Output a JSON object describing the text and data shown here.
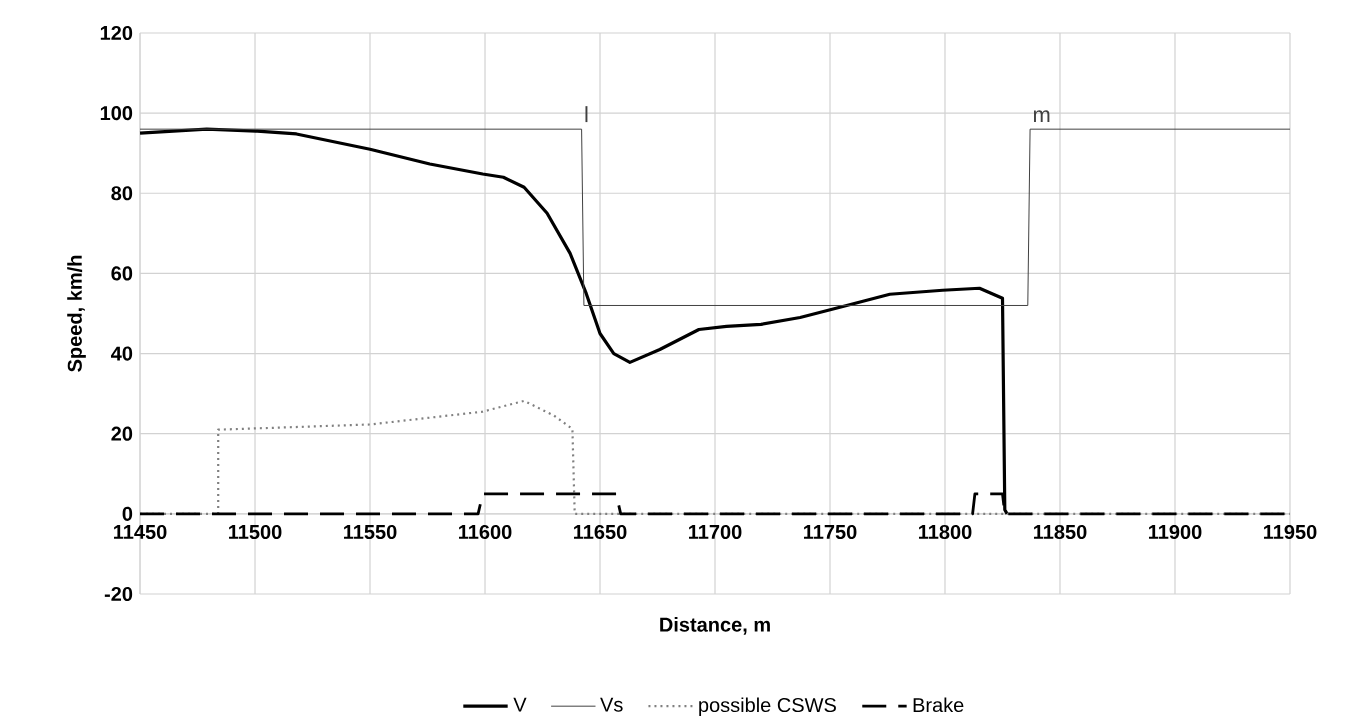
{
  "chart_data": {
    "type": "line",
    "xlabel": "Distance, m",
    "ylabel": "Speed, km/h",
    "xlim": [
      11450,
      11950
    ],
    "xticks": [
      11450,
      11500,
      11550,
      11600,
      11650,
      11700,
      11750,
      11800,
      11850,
      11900,
      11950
    ],
    "ylim": [
      -20,
      120
    ],
    "yticks": [
      -20,
      0,
      20,
      40,
      60,
      80,
      100,
      120
    ],
    "grid": true,
    "legend": "bottom",
    "marker": "none",
    "series": [
      {
        "name": "V",
        "color": "#000000",
        "line_style": "solid",
        "x": [
          11450,
          11479,
          11501,
          11518,
          11550,
          11576,
          11599,
          11608,
          11617,
          11627,
          11637,
          11644,
          11650,
          11656,
          11663,
          11676,
          11693,
          11705,
          11720,
          11737,
          11756,
          11776,
          11799,
          11815,
          11825,
          11826,
          11827
        ],
        "values": [
          95,
          96,
          95.5,
          94.8,
          91,
          87.3,
          84.8,
          84,
          81.5,
          75,
          65,
          55,
          45,
          40,
          37.8,
          41,
          46,
          46.8,
          47.3,
          49,
          51.8,
          54.8,
          55.8,
          56.3,
          53.8,
          1,
          0
        ]
      },
      {
        "name": "Vs",
        "color": "#404040",
        "line_style": "solid",
        "x": [
          11450,
          11642,
          11643,
          11836,
          11837,
          11950
        ],
        "values": [
          96,
          96,
          52,
          52,
          96,
          96
        ]
      },
      {
        "name": "possible CSWS",
        "color": "#808080",
        "line_style": "dotted",
        "x": [
          11450,
          11484,
          11484,
          11550,
          11599,
          11617,
          11630,
          11638,
          11639,
          11950
        ],
        "values": [
          0,
          0,
          21,
          22.3,
          25.5,
          28.2,
          24.5,
          21.2,
          0,
          0
        ]
      },
      {
        "name": "Brake",
        "color": "#000000",
        "line_style": "dashed",
        "x": [
          11450,
          11597,
          11599,
          11657,
          11659,
          11812,
          11813,
          11825,
          11826,
          11950
        ],
        "values": [
          0,
          0,
          5,
          5,
          0,
          0,
          5,
          5,
          0,
          0
        ]
      }
    ],
    "annotations": [
      "l",
      "m"
    ]
  }
}
